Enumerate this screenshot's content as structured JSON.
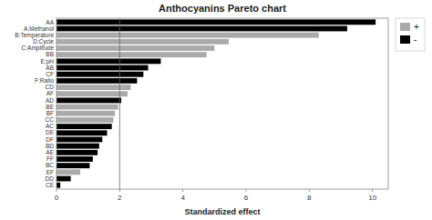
{
  "chart_data": {
    "type": "bar",
    "orientation": "horizontal",
    "stacked": true,
    "title": "Anthocyanins Pareto chart",
    "x_label": "Standardized effect",
    "categories": [
      "AA",
      "A:Methanol",
      "B:Temperature",
      "D:Cycle",
      "C:Amplifude",
      "BB",
      "E:pH",
      "AB",
      "CF",
      "F:Ratio",
      "CD",
      "AF",
      "AD",
      "BE",
      "BF",
      "CC",
      "AC",
      "DE",
      "DF",
      "BD",
      "AE",
      "FF",
      "BC",
      "EF",
      "DD",
      "CE"
    ],
    "series": [
      {
        "name": "+",
        "color": "#aaaaaa",
        "values": [
          null,
          null,
          8.3,
          5.45,
          5.0,
          4.75,
          null,
          null,
          null,
          null,
          2.35,
          2.25,
          null,
          1.95,
          1.85,
          1.8,
          null,
          null,
          null,
          null,
          null,
          null,
          null,
          0.75,
          null,
          null
        ]
      },
      {
        "name": "-",
        "color": "black",
        "values": [
          10.1,
          9.2,
          null,
          null,
          null,
          null,
          3.3,
          2.9,
          2.75,
          2.55,
          null,
          null,
          2.05,
          null,
          null,
          null,
          1.75,
          1.6,
          1.45,
          1.35,
          1.3,
          1.15,
          1.05,
          null,
          0.45,
          0.12
        ]
      }
    ],
    "reference_line_x": 2.0,
    "xlim": [
      0,
      10.5
    ],
    "xticks": [
      0,
      2,
      4,
      6,
      8,
      10
    ],
    "grid": false,
    "legend": "right"
  }
}
